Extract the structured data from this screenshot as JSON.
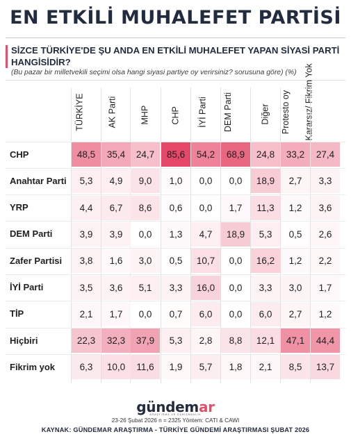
{
  "header": {
    "title": "EN ETKİLİ MUHALEFET PARTİSİ",
    "question": "SİZCE TÜRKİYE'DE ŞU ANDA EN ETKİLİ MUHALEFET YAPAN SİYASİ PARTİ HANGİSİDİR?",
    "subquestion": "(Bu pazar bir milletvekili seçimi olsa hangi siyasi partiye oy verirsiniz? sorusuna göre) (%)"
  },
  "chart_data": {
    "type": "heatmap",
    "columns": [
      "TÜRKİYE",
      "AK Parti",
      "MHP",
      "CHP",
      "İYİ Parti",
      "DEM Parti",
      "Diğer",
      "Protesto oy",
      "Kararsız/ Fikrim Yok"
    ],
    "rows": [
      {
        "label": "CHP",
        "values": [
          "48,5",
          "35,4",
          "24,7",
          "85,6",
          "54,2",
          "68,9",
          "24,8",
          "33,2",
          "27,4"
        ]
      },
      {
        "label": "Anahtar Parti",
        "values": [
          "5,3",
          "4,9",
          "9,0",
          "1,0",
          "0,0",
          "0,0",
          "18,9",
          "2,7",
          "3,3"
        ]
      },
      {
        "label": "YRP",
        "values": [
          "4,4",
          "6,7",
          "8,6",
          "0,6",
          "0,0",
          "1,7",
          "11,3",
          "1,2",
          "3,6"
        ]
      },
      {
        "label": "DEM Parti",
        "values": [
          "3,9",
          "3,9",
          "0,0",
          "1,3",
          "4,7",
          "18,9",
          "5,3",
          "0,5",
          "2,6"
        ]
      },
      {
        "label": "Zafer Partisi",
        "values": [
          "3,8",
          "1,6",
          "3,0",
          "0,5",
          "10,7",
          "0,0",
          "16,2",
          "1,2",
          "2,2"
        ]
      },
      {
        "label": "İYİ Parti",
        "values": [
          "3,5",
          "3,6",
          "5,1",
          "3,3",
          "16,0",
          "0,0",
          "3,3",
          "3,0",
          "1,7"
        ]
      },
      {
        "label": "TİP",
        "values": [
          "2,1",
          "1,7",
          "0,0",
          "0,7",
          "6,0",
          "0,0",
          "6,0",
          "2,7",
          "1,2"
        ]
      },
      {
        "label": "Hiçbiri",
        "values": [
          "22,3",
          "32,3",
          "37,9",
          "5,3",
          "2,8",
          "8,8",
          "12,1",
          "47,1",
          "44,4"
        ]
      },
      {
        "label": "Fikrim yok",
        "values": [
          "6,3",
          "10,0",
          "11,6",
          "1,9",
          "5,7",
          "1,8",
          "2,1",
          "8,5",
          "13,7"
        ]
      }
    ],
    "color_scale": {
      "low": "#ffffff",
      "high": "#e2375a"
    }
  },
  "footer": {
    "logo_main": "gündem",
    "logo_accent": "ar",
    "logo_sub": "ARAŞTIRMA VE DANIŞMANLIK",
    "meta": "23-26 Şubat 2026 n = 2325 Yöntem: CATI & CAWI",
    "source": "KAYNAK: GÜNDEMAR ARAŞTIRMA - TÜRKİYE GÜNDEMİ ARAŞTIRMASI ŞUBAT 2026"
  }
}
